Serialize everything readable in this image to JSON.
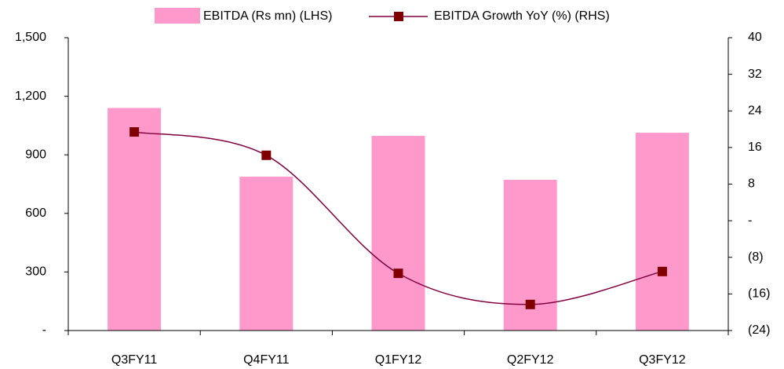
{
  "chart_data": {
    "type": "bar",
    "categories": [
      "Q3FY11",
      "Q4FY11",
      "Q1FY12",
      "Q2FY12",
      "Q3FY12"
    ],
    "series": [
      {
        "name": "EBITDA (Rs mn) (LHS)",
        "type": "bar",
        "color": "#ff99cc",
        "values": [
          1140,
          788,
          997,
          772,
          1013
        ]
      },
      {
        "name": "EBITDA Growth YoY (%) (RHS)",
        "type": "line",
        "axis": "y2",
        "color": "#800040",
        "marker_color": "#800000",
        "values": [
          19.4,
          14.3,
          -11.5,
          -18.3,
          -11.1
        ]
      }
    ],
    "ylim": [
      0,
      1500
    ],
    "yticks": [
      {
        "value": 0,
        "label": "-"
      },
      300,
      600,
      900,
      {
        "value": 1200,
        "label": "1,200"
      },
      {
        "value": 1500,
        "label": "1,500"
      }
    ],
    "y2lim": [
      -24,
      40
    ],
    "y2ticks": [
      {
        "value": -24,
        "label": "(24)"
      },
      {
        "value": -16,
        "label": "(16)"
      },
      {
        "value": -8,
        "label": "(8)"
      },
      {
        "value": 0,
        "label": "-"
      },
      8,
      16,
      24,
      32,
      40
    ],
    "legend": "top",
    "grid": false
  }
}
